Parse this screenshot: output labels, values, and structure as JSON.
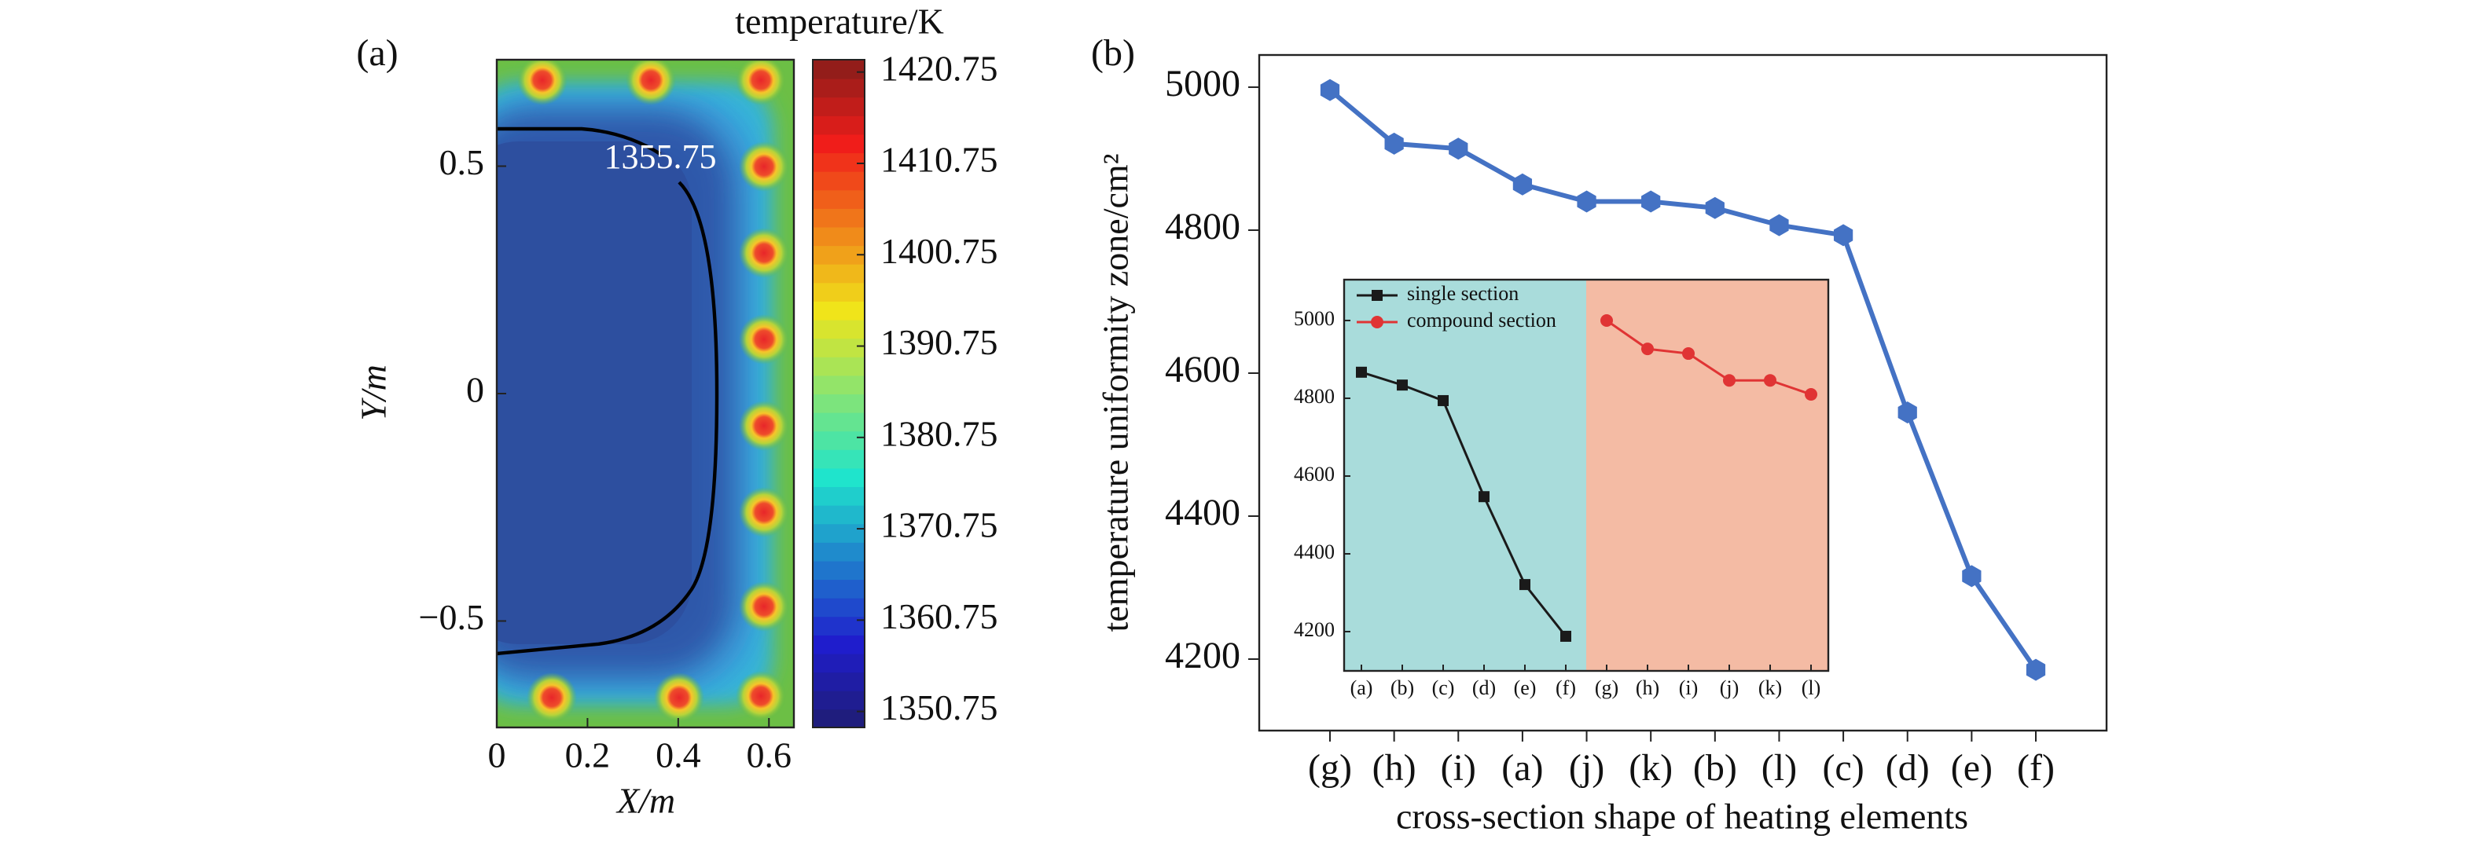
{
  "chart_data": [
    {
      "type": "contour",
      "panel_label": "(a)",
      "colorbar_title": "temperature/K",
      "xlabel": "X/m",
      "ylabel": "Y/m",
      "xlim": [
        0,
        0.655
      ],
      "xticks": [
        0,
        0.2,
        0.4,
        0.6
      ],
      "ylim": [
        -0.734,
        0.734
      ],
      "yticks": [
        {
          "value": -0.5,
          "label": "−0.5"
        },
        0,
        0.5
      ],
      "clim": [
        1349,
        1422.1
      ],
      "cticks": [
        1350.75,
        1360.75,
        1370.75,
        1380.75,
        1390.75,
        1400.75,
        1410.75,
        1420.75
      ],
      "contour_level": 1355.75,
      "colormap": "jet"
    },
    {
      "type": "line",
      "panel_label": "(b)",
      "xlabel": "cross-section shape of heating elements",
      "ylabel": "temperature uniformity zone/cm²",
      "categories": [
        "(g)",
        "(h)",
        "(i)",
        "(a)",
        "(j)",
        "(k)",
        "(b)",
        "(l)",
        "(c)",
        "(d)",
        "(e)",
        "(f)"
      ],
      "values": [
        4996,
        4921,
        4914,
        4864,
        4840,
        4840,
        4831,
        4807,
        4793,
        4545,
        4316,
        4185
      ],
      "color": "#4472c4",
      "marker": "hexagon",
      "ylim": [
        4100,
        5045
      ],
      "yticks": [
        4200,
        4400,
        4600,
        4800,
        5000
      ],
      "inset": {
        "type": "line",
        "legend": "upper left",
        "categories": [
          "(a)",
          "(b)",
          "(c)",
          "(d)",
          "(e)",
          "(f)",
          "(g)",
          "(h)",
          "(i)",
          "(j)",
          "(k)",
          "(l)"
        ],
        "ylim": [
          4099,
          5105
        ],
        "yticks": [
          4200,
          4400,
          4600,
          4800,
          5000
        ],
        "series": [
          {
            "name": "single section",
            "color": "#1a1a1a",
            "marker": "square",
            "background": "#a9dcdb",
            "values": [
              4867,
              4834,
              4794,
              4547,
              4321,
              4188,
              null,
              null,
              null,
              null,
              null,
              null
            ]
          },
          {
            "name": "compound section",
            "color": "#e03434",
            "marker": "circle",
            "background": "#f4bba4",
            "values": [
              null,
              null,
              null,
              null,
              null,
              null,
              5000,
              4927,
              4915,
              4846,
              4846,
              4810
            ]
          }
        ]
      }
    }
  ]
}
